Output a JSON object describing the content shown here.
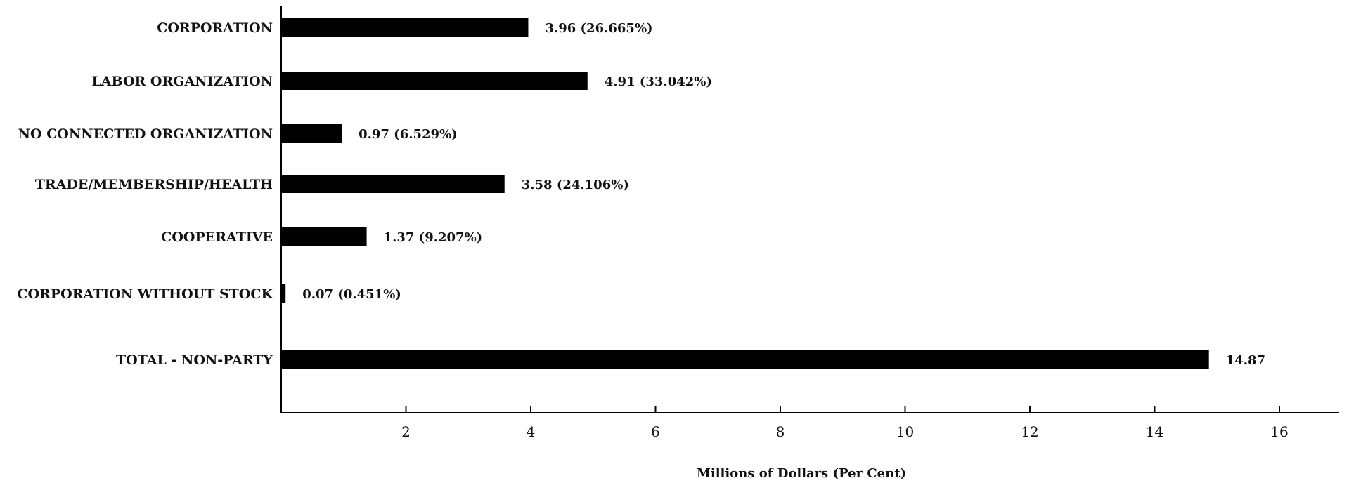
{
  "chart_data": {
    "type": "bar",
    "orientation": "horizontal",
    "categories": [
      "CORPORATION",
      "LABOR ORGANIZATION",
      "NO CONNECTED ORGANIZATION",
      "TRADE/MEMBERSHIP/HEALTH",
      "COOPERATIVE",
      "CORPORATION WITHOUT STOCK",
      "TOTAL - NON-PARTY"
    ],
    "values": [
      3.96,
      4.91,
      0.97,
      3.58,
      1.37,
      0.07,
      14.87
    ],
    "data_labels": [
      "3.96 (26.665%)",
      "4.91 (33.042%)",
      "0.97 (6.529%)",
      "3.58 (24.106%)",
      "1.37 (9.207%)",
      "0.07 (0.451%)",
      "14.87"
    ],
    "xlabel": "Millions of Dollars (Per Cent)",
    "xticks": [
      2,
      4,
      6,
      8,
      10,
      12,
      14,
      16
    ],
    "xlim": [
      0,
      17
    ],
    "grid": false,
    "bar_color": "#000000"
  }
}
